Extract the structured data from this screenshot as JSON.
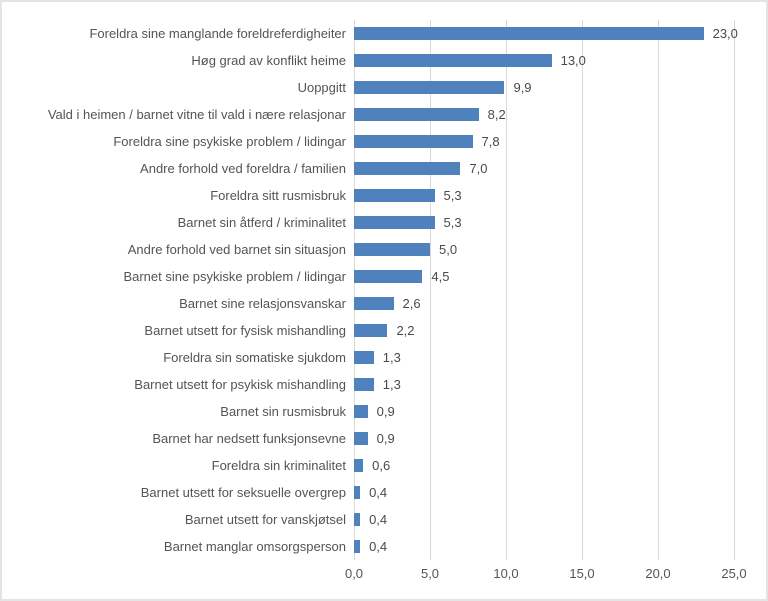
{
  "chart": {
    "colors": {
      "bar": "#4F81BD",
      "gridline": "#D9D9D9",
      "category_text": "#545454",
      "value_text": "#4A4A4A",
      "frame_border": "#E4E4E4",
      "background": "#FFFFFF"
    }
  },
  "chart_data": {
    "type": "bar",
    "orientation": "horizontal",
    "title": "",
    "xlabel": "",
    "ylabel": "",
    "grid": true,
    "legend": false,
    "xlim": [
      0,
      25
    ],
    "x_ticks": [
      0,
      5,
      10,
      15,
      20,
      25
    ],
    "x_tick_labels": [
      "0,0",
      "5,0",
      "10,0",
      "15,0",
      "20,0",
      "25,0"
    ],
    "categories": [
      "Foreldra sine manglande foreldreferdigheiter",
      "Høg grad av konflikt heime",
      "Uoppgitt",
      "Vald i heimen / barnet vitne til vald i nære relasjonar",
      "Foreldra sine psykiske problem / lidingar",
      "Andre forhold ved foreldra / familien",
      "Foreldra sitt rusmisbruk",
      "Barnet sin åtferd / kriminalitet",
      "Andre forhold ved barnet sin situasjon",
      "Barnet sine psykiske problem / lidingar",
      "Barnet sine relasjonsvanskar",
      "Barnet utsett for fysisk mishandling",
      "Foreldra sin somatiske sjukdom",
      "Barnet utsett for psykisk mishandling",
      "Barnet sin rusmisbruk",
      "Barnet har nedsett funksjonsevne",
      "Foreldra sin kriminalitet",
      "Barnet utsett for seksuelle overgrep",
      "Barnet utsett for vanskjøtsel",
      "Barnet manglar omsorgsperson"
    ],
    "values": [
      23.0,
      13.0,
      9.9,
      8.2,
      7.8,
      7.0,
      5.3,
      5.3,
      5.0,
      4.5,
      2.6,
      2.2,
      1.3,
      1.3,
      0.9,
      0.9,
      0.6,
      0.4,
      0.4,
      0.4
    ],
    "value_labels": [
      "23,0",
      "13,0",
      "9,9",
      "8,2",
      "7,8",
      "7,0",
      "5,3",
      "5,3",
      "5,0",
      "4,5",
      "2,6",
      "2,2",
      "1,3",
      "1,3",
      "0,9",
      "0,9",
      "0,6",
      "0,4",
      "0,4",
      "0,4"
    ]
  }
}
